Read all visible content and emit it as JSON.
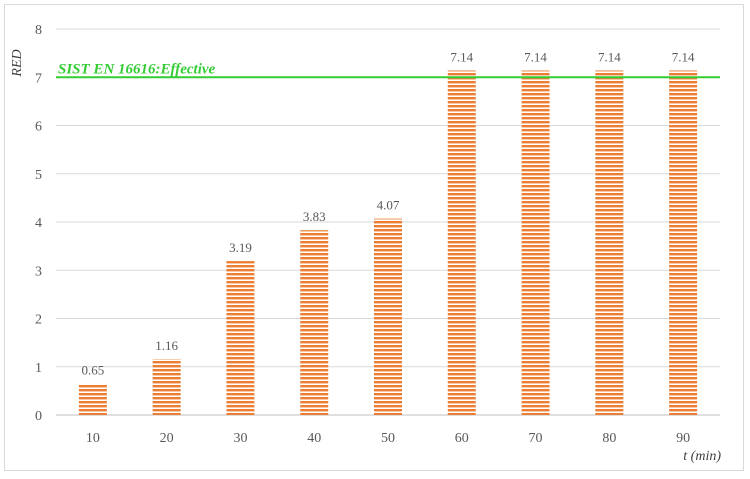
{
  "chart_data": {
    "type": "bar",
    "categories": [
      "10",
      "20",
      "30",
      "40",
      "50",
      "60",
      "70",
      "80",
      "90"
    ],
    "values": [
      0.65,
      1.16,
      3.19,
      3.83,
      4.07,
      7.14,
      7.14,
      7.14,
      7.14
    ],
    "data_labels": [
      "0.65",
      "1.16",
      "3.19",
      "3.83",
      "4.07",
      "7.14",
      "7.14",
      "7.14",
      "7.14"
    ],
    "xlabel": "t (min)",
    "ylabel": "RED",
    "ylim": [
      0,
      8
    ],
    "yticks": [
      "0",
      "1",
      "2",
      "3",
      "4",
      "5",
      "6",
      "7",
      "8"
    ],
    "grid": "horizontal",
    "legend": "none",
    "reference_line": {
      "value": 7,
      "label": "SIST EN 16616:Effective",
      "color": "#33cc33"
    },
    "bar_color": "#ed7d31",
    "bar_fill": "horizontal-stripes"
  }
}
